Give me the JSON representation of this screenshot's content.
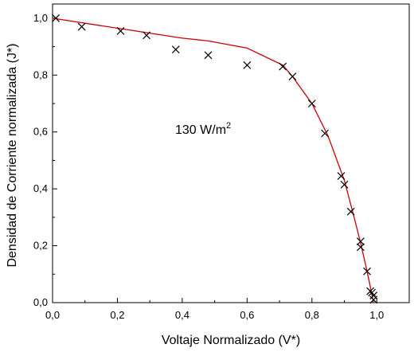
{
  "chart_data": {
    "type": "scatter",
    "title": "",
    "xlabel": "Voltaje Normalizado (V*)",
    "ylabel": "Densidad de Corriente normalizada (J*)",
    "xlim": [
      0,
      1.1
    ],
    "ylim": [
      0,
      1.05
    ],
    "x_ticks": [
      "0,0",
      "0,2",
      "0,4",
      "0,6",
      "0,8",
      "1,0"
    ],
    "y_ticks": [
      "0,0",
      "0,2",
      "0,4",
      "0,6",
      "0,8",
      "1,0"
    ],
    "annotation": {
      "text": "130 W/m",
      "superscript": "2"
    },
    "grid": false,
    "legend": "none",
    "series": [
      {
        "kind": "markers",
        "marker": "x",
        "color": "#000000",
        "x": [
          0.01,
          0.09,
          0.21,
          0.29,
          0.38,
          0.48,
          0.6,
          0.71,
          0.74,
          0.8,
          0.84,
          0.89,
          0.9,
          0.92,
          0.95,
          0.95,
          0.97,
          0.98,
          0.985,
          0.99,
          0.99
        ],
        "y": [
          1.0,
          0.97,
          0.955,
          0.94,
          0.89,
          0.87,
          0.835,
          0.83,
          0.795,
          0.7,
          0.595,
          0.445,
          0.415,
          0.32,
          0.215,
          0.195,
          0.11,
          0.04,
          0.035,
          0.025,
          0.01
        ]
      },
      {
        "kind": "line",
        "color": "#cc0000",
        "x": [
          0.0,
          0.2,
          0.4,
          0.48,
          0.6,
          0.71,
          0.74,
          0.8,
          0.85,
          0.9,
          0.93,
          0.95,
          0.97,
          0.99
        ],
        "y": [
          1.0,
          0.965,
          0.93,
          0.92,
          0.895,
          0.835,
          0.795,
          0.7,
          0.585,
          0.43,
          0.3,
          0.21,
          0.11,
          0.0
        ]
      }
    ]
  }
}
